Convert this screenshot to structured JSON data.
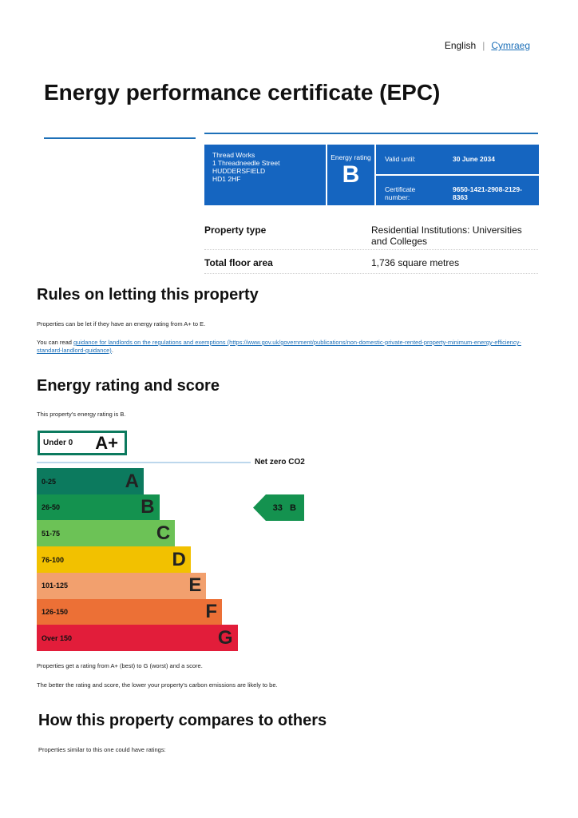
{
  "lang": {
    "english": "English",
    "welsh": "Cymraeg"
  },
  "title": "Energy performance certificate (EPC)",
  "summary": {
    "address": [
      "Thread Works",
      "1 Threadneedle Street",
      "HUDDERSFIELD",
      "HD1 2HF"
    ],
    "energy_rating_label": "Energy rating",
    "energy_rating": "B",
    "valid_until_label": "Valid until:",
    "valid_until": "30 June 2034",
    "certificate_label": "Certificate number:",
    "certificate_number": "9650-1421-2908-2129-8363"
  },
  "property": {
    "type_label": "Property type",
    "type": "Residential Institutions: Universities and Colleges",
    "area_label": "Total floor area",
    "area": "1,736 square metres"
  },
  "letting": {
    "heading": "Rules on letting this property",
    "p1": "Properties can be let if they have an energy rating from A+ to E.",
    "p2_pre": "You can read ",
    "p2_link": "guidance for landlords on the regulations and exemptions",
    "p2_url": " (https://www.gov.uk/government/publications/non-domestic-private-rented-property-minimum-energy-efficiency-standard-landlord-guidance)",
    "p2_post": "."
  },
  "rating": {
    "heading": "Energy rating and score",
    "intro": "This property's energy rating is B.",
    "aplus": {
      "range": "Under 0",
      "letter": "A+"
    },
    "net_zero": "Net zero CO2",
    "bands": [
      {
        "range": "0-25",
        "letter": "A",
        "color": "#0c7a5e"
      },
      {
        "range": "26-50",
        "letter": "B",
        "color": "#14924f"
      },
      {
        "range": "51-75",
        "letter": "C",
        "color": "#6cc256"
      },
      {
        "range": "76-100",
        "letter": "D",
        "color": "#f2c100"
      },
      {
        "range": "101-125",
        "letter": "E",
        "color": "#f2a06e"
      },
      {
        "range": "126-150",
        "letter": "F",
        "color": "#ec7036"
      },
      {
        "range": "Over 150",
        "letter": "G",
        "color": "#e21d3a"
      }
    ],
    "current": {
      "score": "33",
      "letter": "B",
      "color": "#14924f"
    },
    "note1": "Properties get a rating from A+ (best) to G (worst) and a score.",
    "note2": "The better the rating and score, the lower your property's carbon emissions are likely to be."
  },
  "compare": {
    "heading": "How this property compares to others",
    "intro": "Properties similar to this one could have ratings:"
  }
}
